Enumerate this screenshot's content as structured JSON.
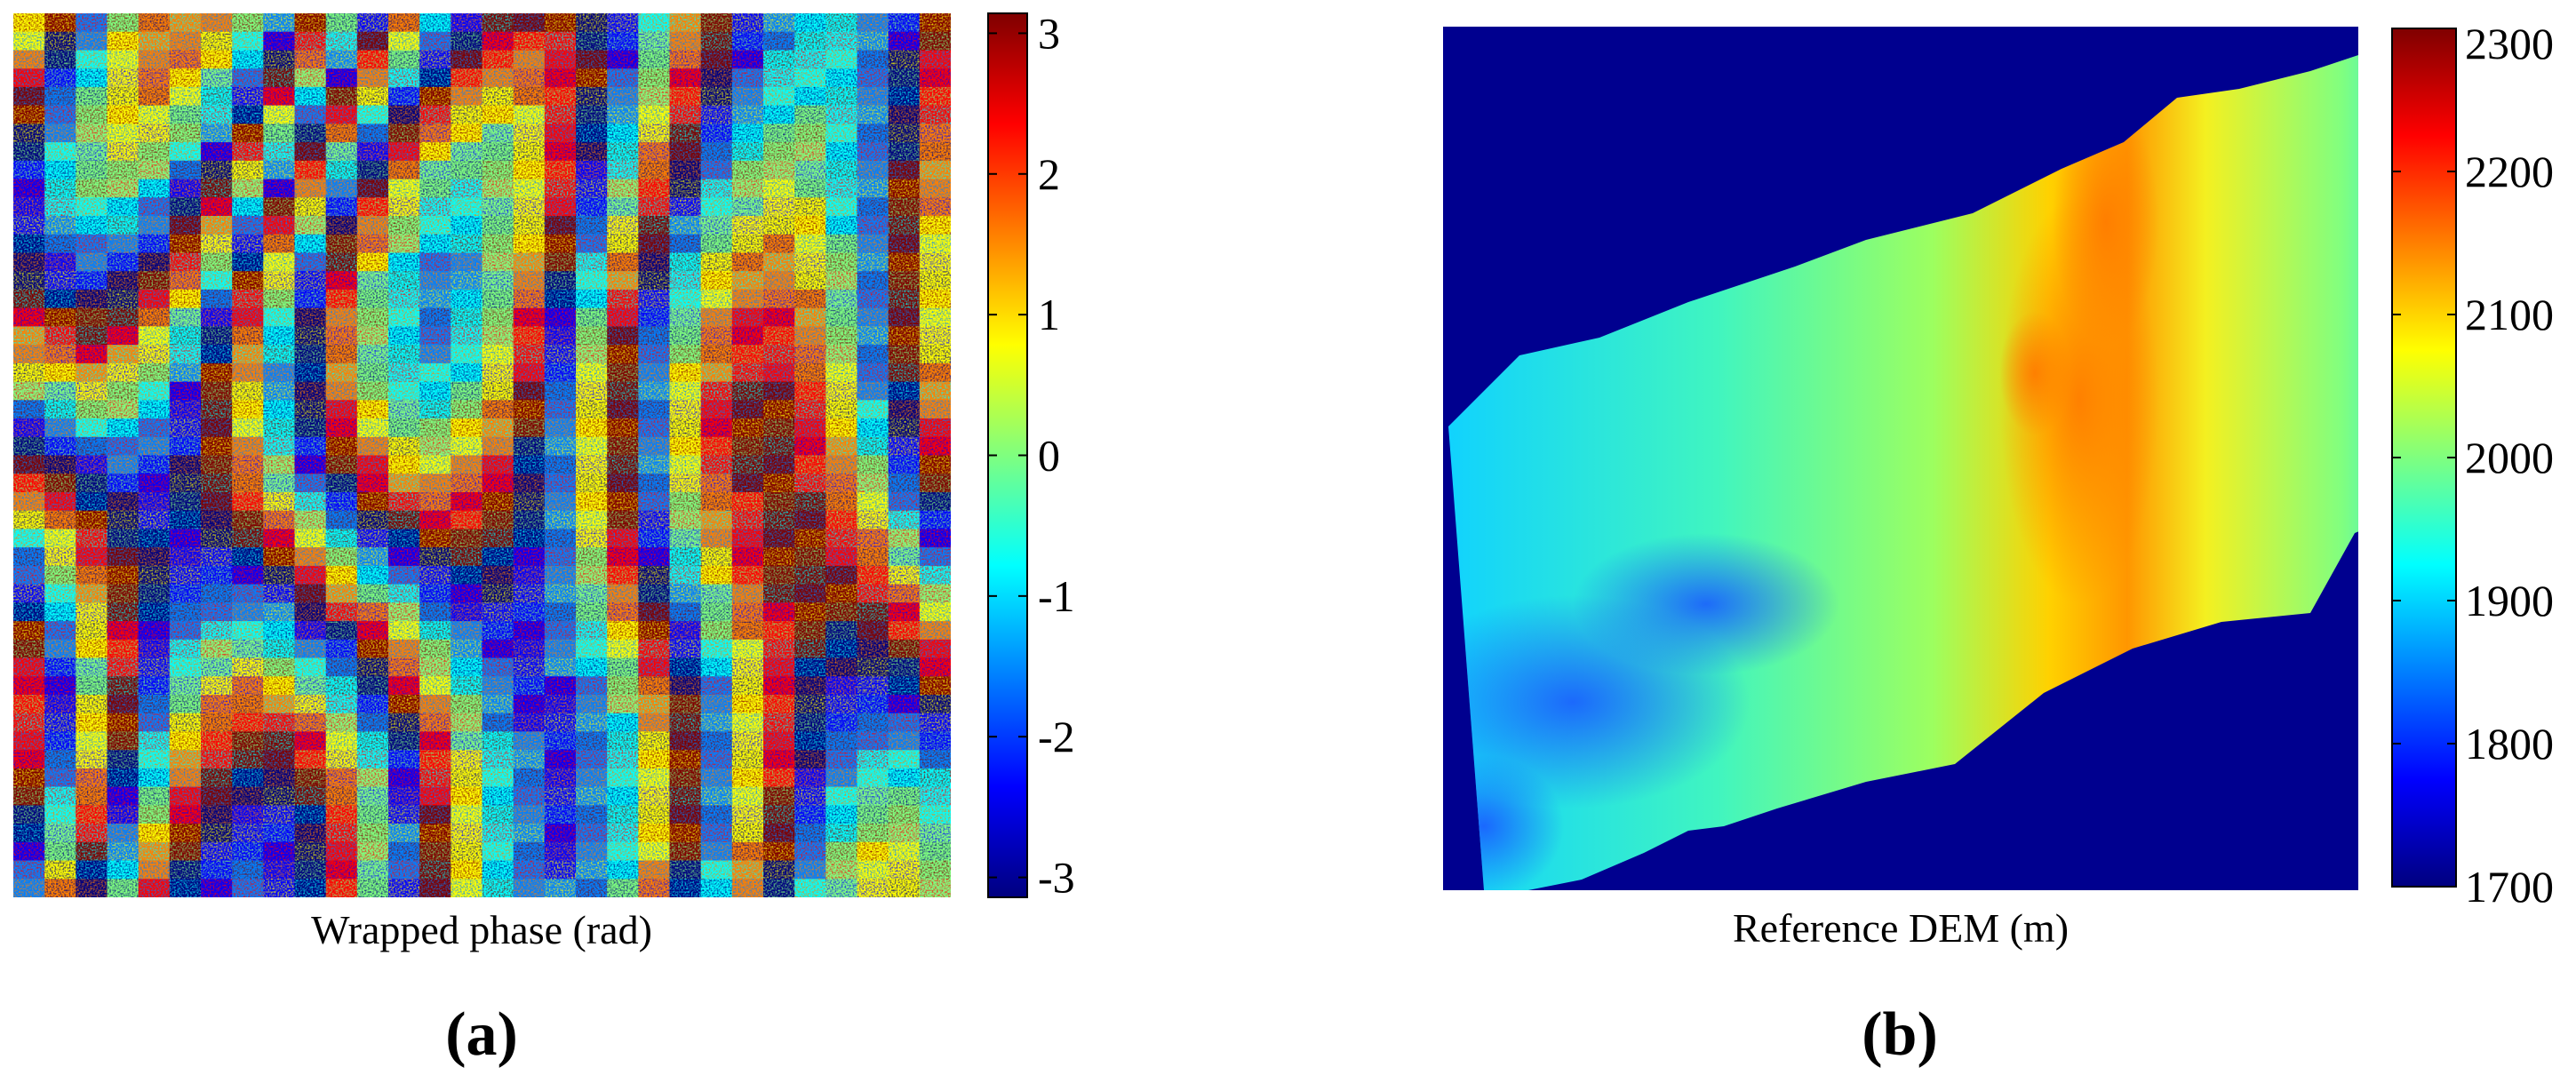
{
  "chart_data": [
    {
      "type": "heatmap",
      "panel_label": "(a)",
      "xlabel": "Wrapped phase (rad)",
      "colormap": "jet",
      "colorbar": {
        "range": [
          -3.14159,
          3.14159
        ],
        "ticks": [
          3,
          2,
          1,
          0,
          -1,
          -2,
          -3
        ],
        "tick_labels": [
          "3",
          "2",
          "1",
          "0",
          "-1",
          "-2",
          "-3"
        ]
      },
      "grid": false
    },
    {
      "type": "heatmap",
      "panel_label": "(b)",
      "xlabel": "Reference DEM (m)",
      "colormap": "jet",
      "background_color": "#00008f",
      "colorbar": {
        "range": [
          1700,
          2300
        ],
        "ticks": [
          2300,
          2200,
          2100,
          2000,
          1900,
          1800,
          1700
        ],
        "tick_labels": [
          "2300",
          "2200",
          "2100",
          "2000",
          "1900",
          "1800",
          "1700"
        ]
      },
      "grid": false
    }
  ],
  "colors": {
    "jet": [
      "#00007f",
      "#0000ff",
      "#007fff",
      "#00ffff",
      "#7fff7f",
      "#ffff00",
      "#ff7f00",
      "#ff0000",
      "#7f0000"
    ],
    "dem_background": "#00008f"
  }
}
